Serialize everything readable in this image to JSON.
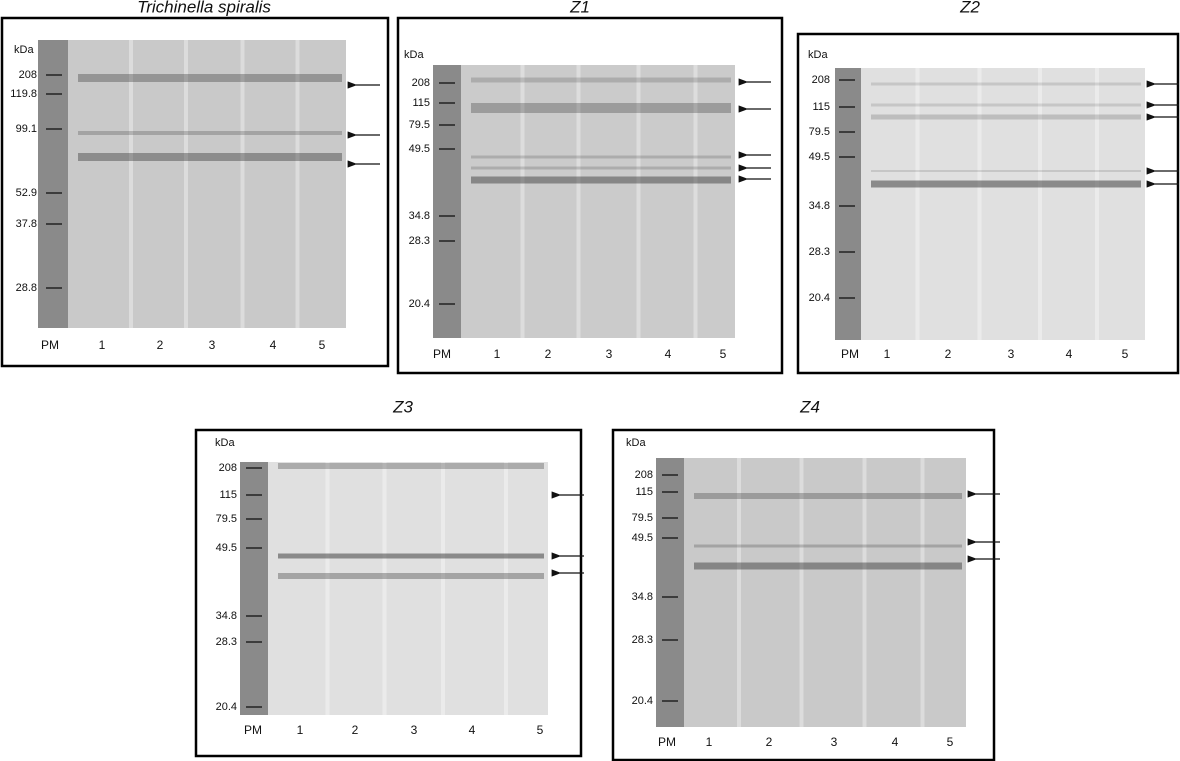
{
  "panels": [
    {
      "title": "Trichinella spiralis",
      "unit": "kDa",
      "markers": [
        "208",
        "119.8",
        "99.1",
        "52.9",
        "37.8",
        "28.8"
      ],
      "lanes": [
        "PM",
        "1",
        "2",
        "3",
        "4",
        "5"
      ]
    },
    {
      "title": "Z1",
      "unit": "kDa",
      "markers": [
        "208",
        "115",
        "79.5",
        "49.5",
        "34.8",
        "28.3",
        "20.4"
      ],
      "lanes": [
        "PM",
        "1",
        "2",
        "3",
        "4",
        "5"
      ]
    },
    {
      "title": "Z2",
      "unit": "kDa",
      "markers": [
        "208",
        "115",
        "79.5",
        "49.5",
        "34.8",
        "28.3",
        "20.4"
      ],
      "lanes": [
        "PM",
        "1",
        "2",
        "3",
        "4",
        "5"
      ]
    },
    {
      "title": "Z3",
      "unit": "kDa",
      "markers": [
        "208",
        "115",
        "79.5",
        "49.5",
        "34.8",
        "28.3",
        "20.4"
      ],
      "lanes": [
        "PM",
        "1",
        "2",
        "3",
        "4",
        "5"
      ]
    },
    {
      "title": "Z4",
      "unit": "kDa",
      "markers": [
        "208",
        "115",
        "79.5",
        "49.5",
        "34.8",
        "28.3",
        "20.4"
      ],
      "lanes": [
        "PM",
        "1",
        "2",
        "3",
        "4",
        "5"
      ]
    }
  ]
}
